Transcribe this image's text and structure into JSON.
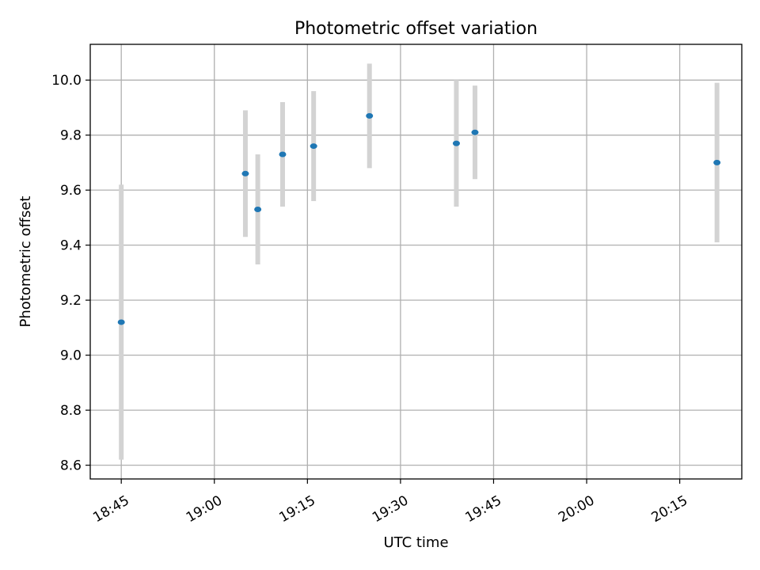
{
  "chart_data": {
    "type": "scatter",
    "title": "Photometric offset variation",
    "xlabel": "UTC time",
    "ylabel": "Photometric offset",
    "x_ticks": [
      "18:45",
      "19:00",
      "19:15",
      "19:30",
      "19:45",
      "20:00",
      "20:15"
    ],
    "y_ticks": [
      "8.6",
      "8.8",
      "9.0",
      "9.2",
      "9.4",
      "9.6",
      "9.8",
      "10.0"
    ],
    "xlim": [
      "18:40",
      "20:25"
    ],
    "ylim": [
      8.55,
      10.13
    ],
    "grid": true,
    "point_color": "#1f77b4",
    "errorbar_color": "#d3d3d3",
    "points": [
      {
        "x": "18:45",
        "y": 9.12,
        "err": 0.5
      },
      {
        "x": "19:05",
        "y": 9.66,
        "err": 0.23
      },
      {
        "x": "19:07",
        "y": 9.53,
        "err": 0.2
      },
      {
        "x": "19:11",
        "y": 9.73,
        "err": 0.19
      },
      {
        "x": "19:16",
        "y": 9.76,
        "err": 0.2
      },
      {
        "x": "19:25",
        "y": 9.87,
        "err": 0.19
      },
      {
        "x": "19:39",
        "y": 9.77,
        "err": 0.23
      },
      {
        "x": "19:42",
        "y": 9.81,
        "err": 0.17
      },
      {
        "x": "20:21",
        "y": 9.7,
        "err": 0.29
      }
    ]
  }
}
